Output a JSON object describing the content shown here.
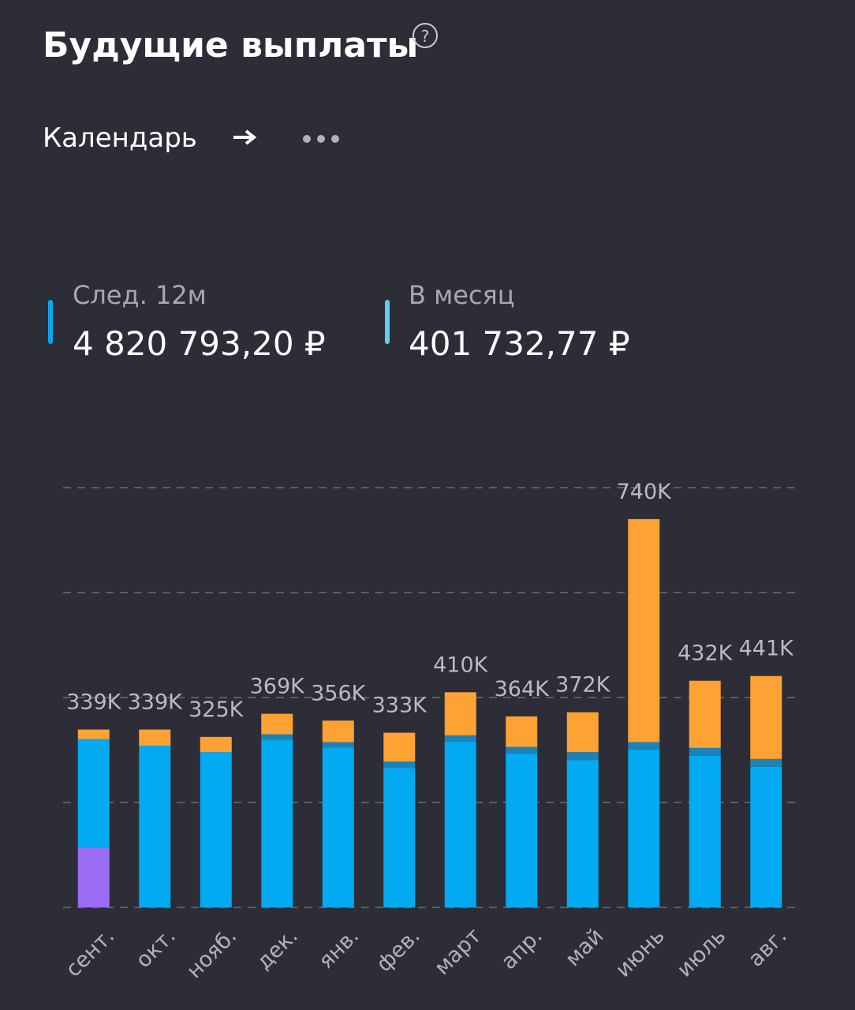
{
  "header": {
    "title": "Будущие выплаты",
    "help": "?",
    "calendar": "Календарь"
  },
  "stats": [
    {
      "label": "След. 12м",
      "value": "4 820 793,20 ₽",
      "color": "#0aa6ef"
    },
    {
      "label": "В месяц",
      "value": "401 732,77 ₽",
      "color": "#5fd0ea"
    }
  ],
  "chart_data": {
    "type": "bar",
    "stacked": true,
    "categories": [
      "сент.",
      "окт.",
      "нояб.",
      "дек.",
      "янв.",
      "фев.",
      "март",
      "апр.",
      "май",
      "июнь",
      "июль",
      "авг."
    ],
    "series": [
      {
        "color": "#9b6df5",
        "values": [
          113000,
          0,
          0,
          0,
          0,
          0,
          0,
          0,
          0,
          0,
          0,
          0
        ]
      },
      {
        "color": "#03aaf2",
        "values": [
          208000,
          308000,
          296000,
          320000,
          305000,
          266000,
          316000,
          293000,
          281000,
          301000,
          289000,
          268000
        ]
      },
      {
        "color": "#1a82b6",
        "values": [
          0,
          0,
          0,
          10000,
          10000,
          12000,
          12000,
          13000,
          15000,
          14000,
          15000,
          15000
        ]
      },
      {
        "color": "#ffa234",
        "values": [
          18000,
          31000,
          29000,
          39000,
          41000,
          55000,
          82000,
          58000,
          76000,
          425000,
          128000,
          158000
        ]
      }
    ],
    "totals": [
      339000,
      339000,
      325000,
      369000,
      356000,
      333000,
      410000,
      364000,
      372000,
      740000,
      432000,
      441000
    ],
    "total_labels": [
      "339K",
      "339K",
      "325K",
      "369K",
      "356K",
      "333K",
      "410K",
      "364K",
      "372K",
      "740K",
      "432K",
      "441K"
    ],
    "ylim": [
      0,
      800000
    ],
    "yticks": [
      0,
      200000,
      400000,
      600000,
      800000
    ],
    "grid": true
  }
}
